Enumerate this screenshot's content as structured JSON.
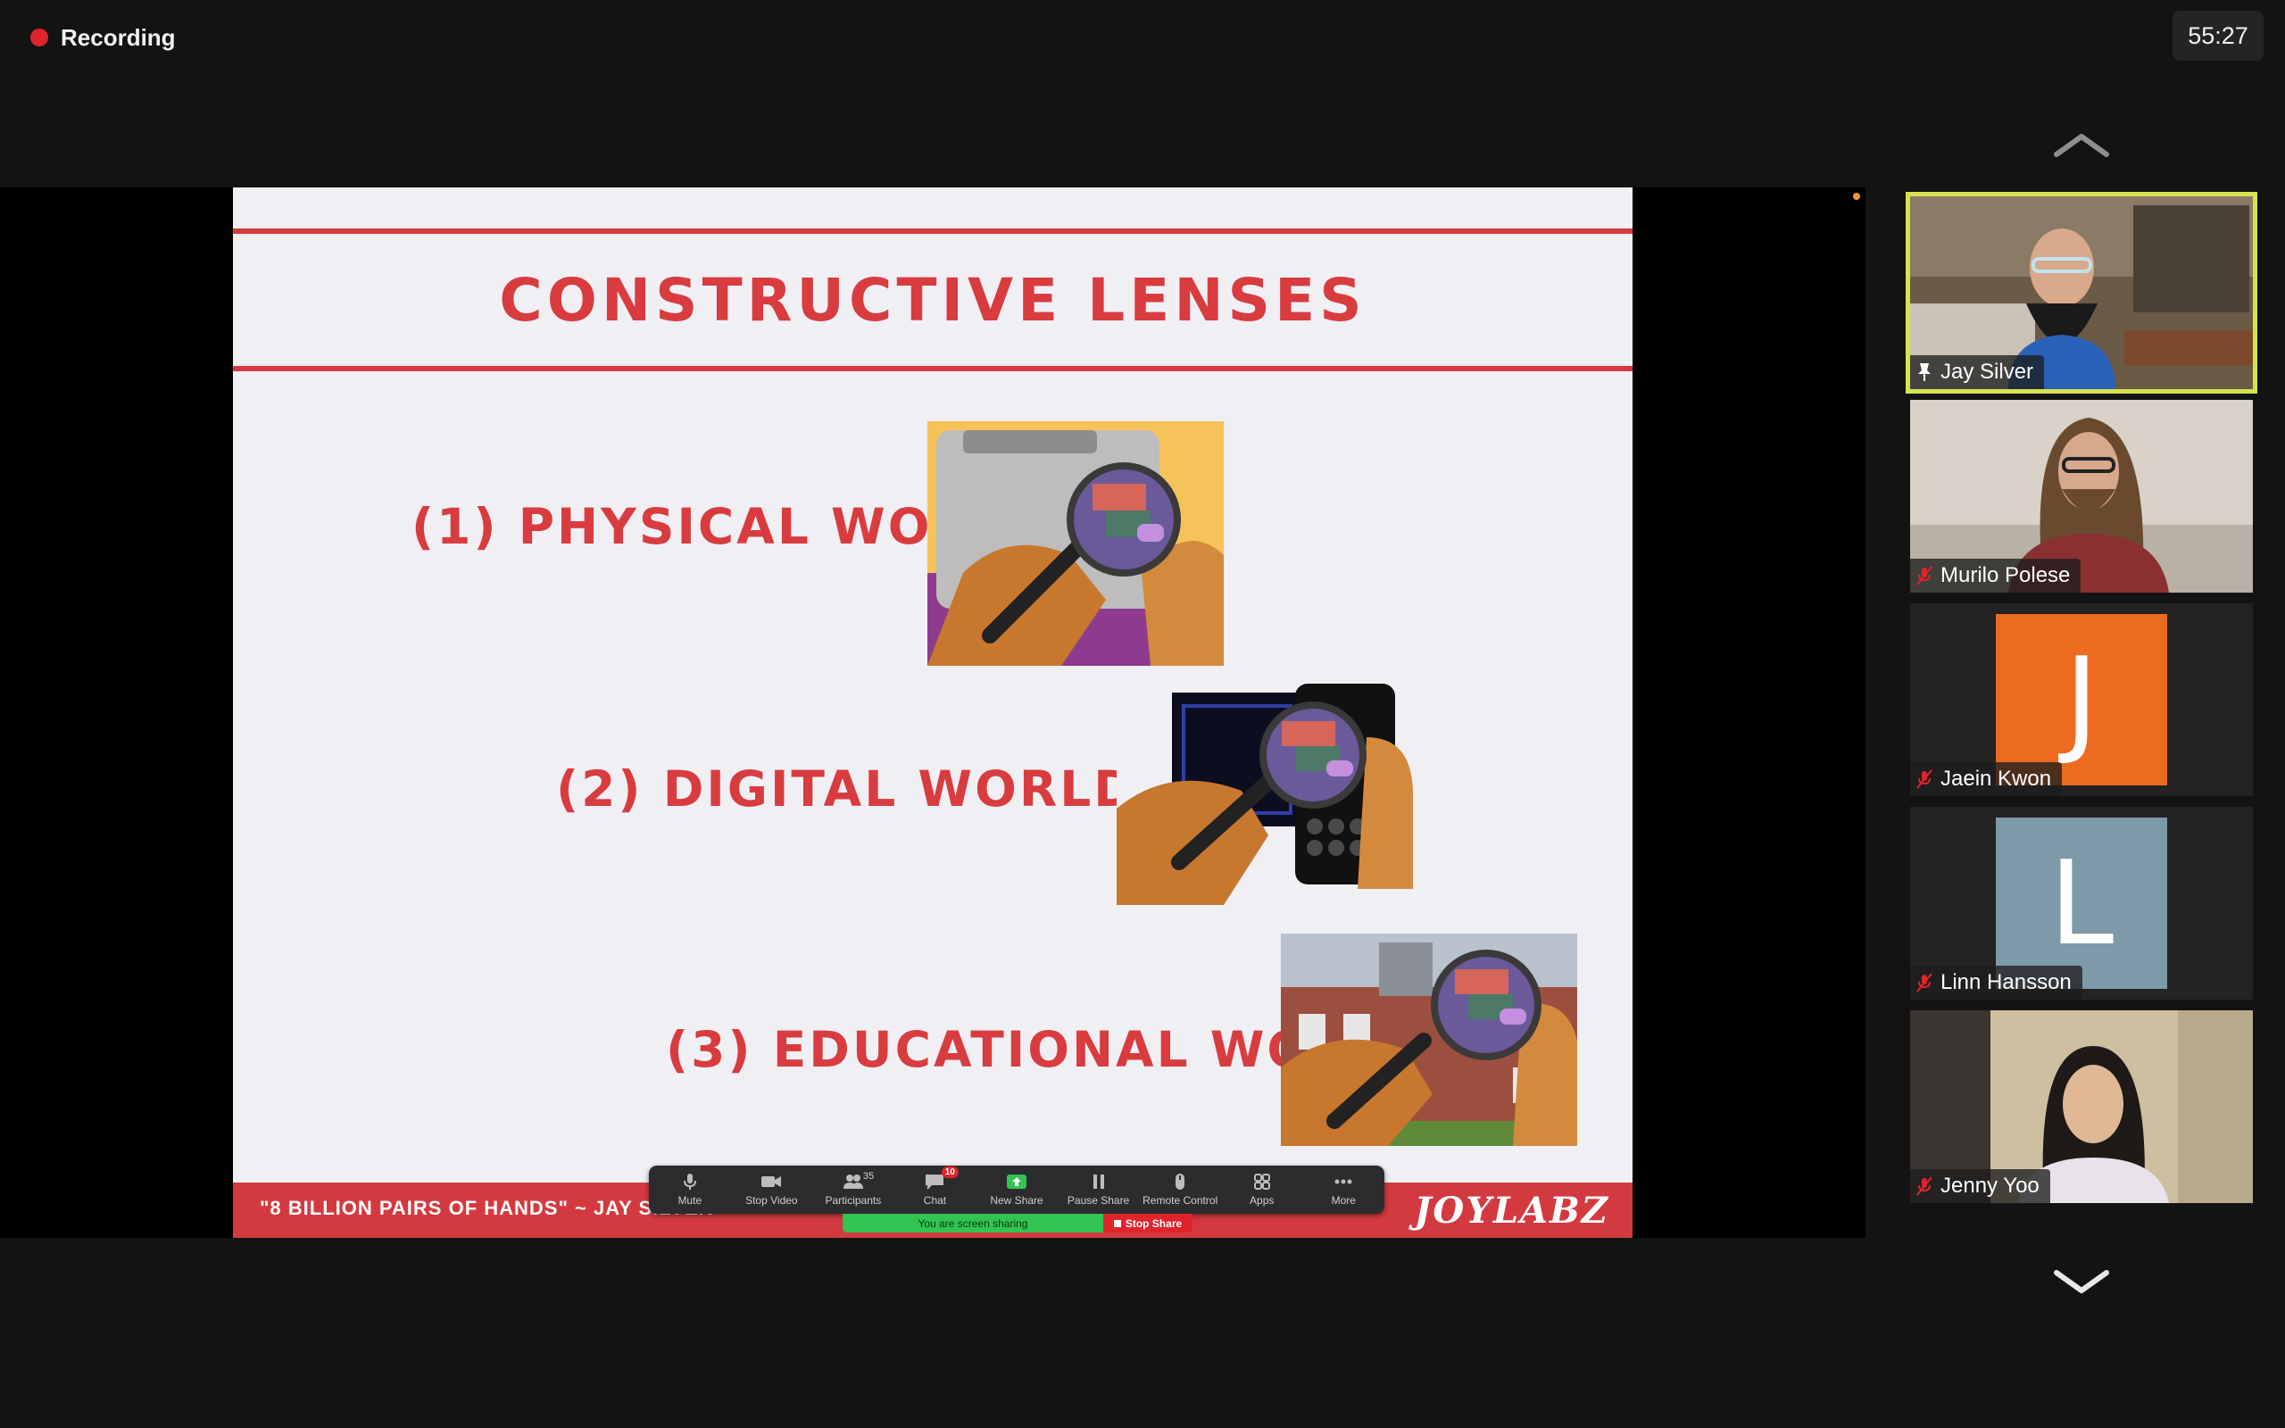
{
  "recording": {
    "label": "Recording",
    "color": "#e0242c"
  },
  "timer": "55:27",
  "slide": {
    "title": "CONSTRUCTIVE LENSES",
    "items": [
      {
        "label": "(1) PHYSICAL WORLD",
        "icon": "toaster-magnifier-illustration"
      },
      {
        "label": "(2) DIGITAL WORLD",
        "icon": "phone-magnifier-illustration"
      },
      {
        "label": "(3) EDUCATIONAL WORLD",
        "icon": "school-magnifier-illustration"
      }
    ],
    "footer_caption": "\"8 BILLION PAIRS OF HANDS\" ~ JAY SILVER",
    "footer_logo": "JOYLABZ",
    "accent": "#d83c3f"
  },
  "toolbar": {
    "buttons": [
      {
        "label": "Mute",
        "icon": "microphone-icon"
      },
      {
        "label": "Stop Video",
        "icon": "video-camera-icon"
      },
      {
        "label": "Participants",
        "icon": "participants-icon",
        "count": "35"
      },
      {
        "label": "Chat",
        "icon": "chat-icon",
        "badge": "10"
      },
      {
        "label": "New Share",
        "icon": "share-screen-icon"
      },
      {
        "label": "Pause Share",
        "icon": "pause-icon"
      },
      {
        "label": "Remote Control",
        "icon": "mouse-icon"
      },
      {
        "label": "Apps",
        "icon": "apps-icon"
      },
      {
        "label": "More",
        "icon": "more-icon"
      }
    ],
    "sharing_status": "You are screen sharing",
    "stop_share": "Stop Share"
  },
  "participants": [
    {
      "name": "Jay Silver",
      "type": "video",
      "pinned": true,
      "active_speaker": true
    },
    {
      "name": "Murilo Polese",
      "type": "video",
      "muted": true
    },
    {
      "name": "Jaein Kwon",
      "type": "avatar",
      "initial": "J",
      "color": "#ed6b1f",
      "muted": true
    },
    {
      "name": "Linn Hansson",
      "type": "avatar",
      "initial": "L",
      "color": "#7e99a7",
      "muted": true
    },
    {
      "name": "Jenny Yoo",
      "type": "video",
      "muted": true
    }
  ]
}
